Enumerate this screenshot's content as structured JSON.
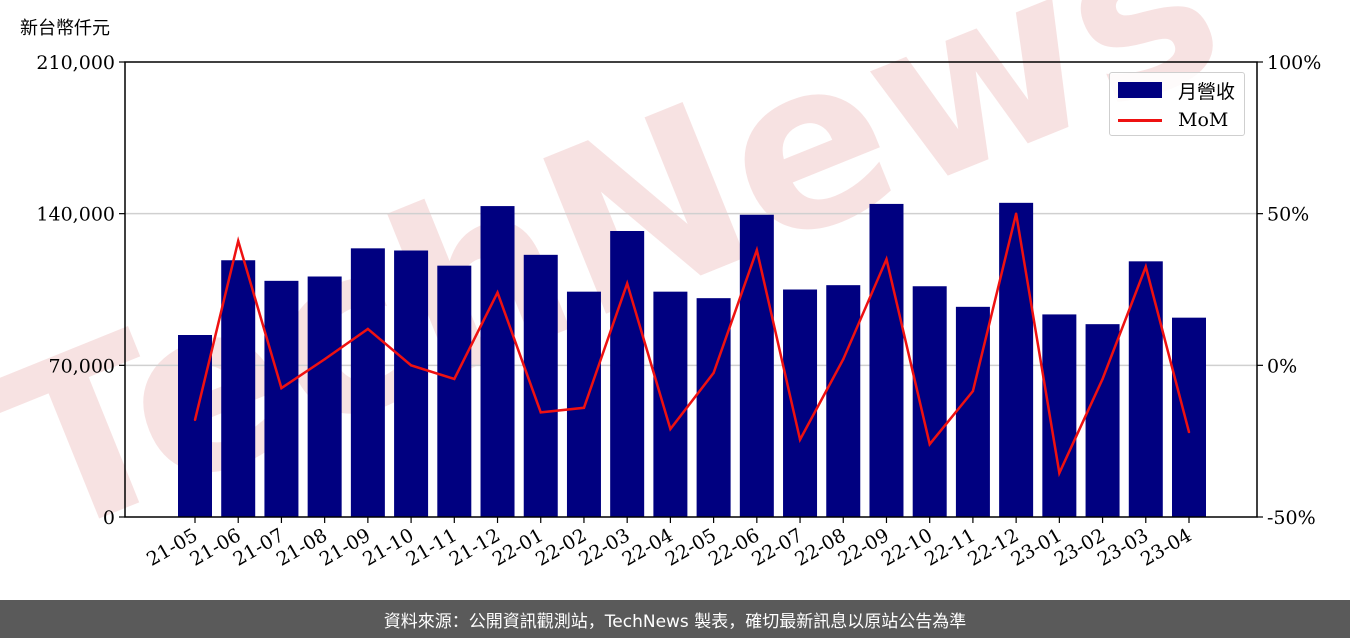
{
  "unit_label": "新台幣仟元",
  "footer_text": "資料來源：公開資訊觀測站，TechNews 製表，確切最新訊息以原站公告為準",
  "watermark": "TechNews",
  "colors": {
    "bar": "#000080",
    "line": "#ee1111",
    "watermark": "#f2cccc",
    "footer_bg": "#5a5a5a"
  },
  "chart_data": {
    "type": "bar",
    "categories": [
      "21-05",
      "21-06",
      "21-07",
      "21-08",
      "21-09",
      "21-10",
      "21-11",
      "21-12",
      "22-01",
      "22-02",
      "22-03",
      "22-04",
      "22-05",
      "22-06",
      "22-07",
      "22-08",
      "22-09",
      "22-10",
      "22-11",
      "22-12",
      "23-01",
      "23-02",
      "23-03",
      "23-04"
    ],
    "series": [
      {
        "name": "月營收",
        "type": "bar",
        "axis": "left",
        "values": [
          84000,
          118500,
          109000,
          111000,
          124000,
          123000,
          116000,
          143500,
          121000,
          104000,
          132000,
          104000,
          101000,
          139500,
          105000,
          107000,
          144500,
          106500,
          97000,
          145000,
          93500,
          89000,
          118000,
          92000
        ]
      },
      {
        "name": "MoM",
        "type": "line",
        "axis": "right",
        "values": [
          -18,
          41,
          -7.5,
          2,
          12,
          0,
          -4.5,
          24,
          -15.5,
          -14,
          27,
          -21,
          -2.5,
          38,
          -24.5,
          2,
          35,
          -26,
          -8.5,
          50,
          -35.5,
          -4.5,
          32.5,
          -22
        ]
      }
    ],
    "left_axis": {
      "ylim": [
        0,
        210000
      ],
      "ticks": [
        0,
        70000,
        140000,
        210000
      ],
      "tick_labels": [
        "0",
        "70,000",
        "140,000",
        "210,000"
      ]
    },
    "right_axis": {
      "ylim": [
        -50,
        100
      ],
      "ticks": [
        -50,
        0,
        50,
        100
      ],
      "tick_labels": [
        "-50%",
        "0%",
        "50%",
        "100%"
      ]
    },
    "grid": "horizontal",
    "legend_position": "top-right"
  }
}
